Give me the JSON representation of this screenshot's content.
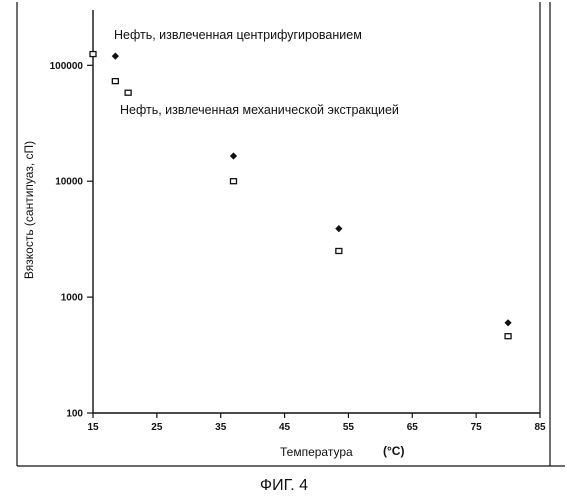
{
  "chart_data": {
    "type": "scatter",
    "title": "",
    "xlabel": "Температура",
    "xunit": "(°C)",
    "ylabel": "Вязкость (сантипуаз, сП)",
    "xlim": [
      15,
      85
    ],
    "ylim": [
      100,
      300000
    ],
    "yscale": "log",
    "x_ticks": [
      15,
      25,
      35,
      45,
      55,
      65,
      75,
      85
    ],
    "y_ticks": [
      100,
      1000,
      10000,
      100000
    ],
    "y_tick_labels": [
      "100",
      "1000",
      "10000",
      "100000"
    ],
    "grid": false,
    "series": [
      {
        "name": "Нефть, извлеченная центрифугированием",
        "marker": "diamond-filled",
        "color": "#111111",
        "points": [
          {
            "x": 18.5,
            "y": 120000
          },
          {
            "x": 37,
            "y": 16500
          },
          {
            "x": 53.5,
            "y": 3900
          },
          {
            "x": 80,
            "y": 600
          }
        ]
      },
      {
        "name": "Нефть, извлеченная механической экстракцией",
        "marker": "square-open",
        "color": "#111111",
        "points": [
          {
            "x": 15,
            "y": 125000
          },
          {
            "x": 18.5,
            "y": 73000
          },
          {
            "x": 20.5,
            "y": 58000
          },
          {
            "x": 37,
            "y": 10000
          },
          {
            "x": 53.5,
            "y": 2500
          },
          {
            "x": 80,
            "y": 460
          }
        ]
      }
    ]
  },
  "caption": "ФИГ. 4"
}
